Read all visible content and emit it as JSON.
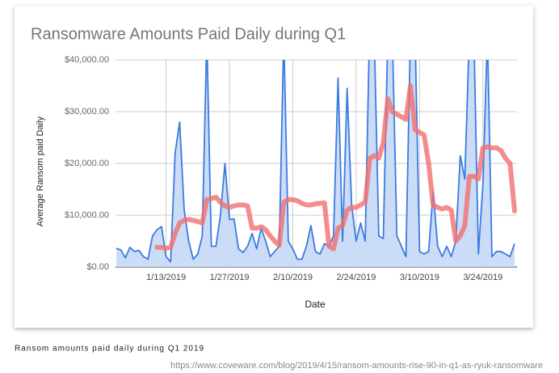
{
  "chart_data": {
    "type": "area_line",
    "title": "Ransomware Amounts Paid Daily during Q1",
    "xlabel": "Date",
    "ylabel": "Average Ransom paid Daily",
    "xlim": [
      "1/2/2019",
      "3/31/2019"
    ],
    "xticks": [
      "1/13/2019",
      "1/27/2019",
      "2/10/2019",
      "2/24/2019",
      "3/10/2019",
      "3/24/2019"
    ],
    "ylim": [
      0,
      40000
    ],
    "yticks": [
      {
        "value": 0,
        "label": "$0.00"
      },
      {
        "value": 10000,
        "label": "$10,000.00"
      },
      {
        "value": 20000,
        "label": "$20,000.00"
      },
      {
        "value": 30000,
        "label": "$30,000.00"
      },
      {
        "value": 40000,
        "label": "$40,000.00"
      }
    ],
    "grid": true,
    "start": "1/2/2019",
    "series": [
      {
        "color": "#3b7be0",
        "fill": "#c5d8f6",
        "values": [
          3600,
          3300,
          1800,
          3800,
          3000,
          3200,
          2000,
          1500,
          6000,
          7200,
          7800,
          2000,
          1000,
          22000,
          28000,
          11000,
          5000,
          1500,
          2500,
          6000,
          45000,
          4000,
          4000,
          10000,
          20000,
          9200,
          9300,
          3500,
          2800,
          4000,
          6500,
          3500,
          7500,
          5000,
          2000,
          3000,
          4000,
          45000,
          5000,
          3500,
          1500,
          1500,
          4000,
          8000,
          3000,
          2500,
          4500,
          4000,
          6000,
          36500,
          5000,
          34500,
          12000,
          5000,
          8500,
          5000,
          48000,
          45000,
          6000,
          5500,
          45000,
          45000,
          6000,
          4000,
          2000,
          45000,
          45000,
          3000,
          2500,
          3000,
          14500,
          4000,
          2000,
          4000,
          2000,
          5000,
          21500,
          17000,
          45000,
          45000,
          2500,
          16000,
          45000,
          2000,
          3000,
          3000,
          2500,
          2000,
          4500
        ]
      },
      {
        "color": "#f07070",
        "values": [
          null,
          null,
          null,
          null,
          null,
          null,
          null,
          null,
          null,
          3800,
          3800,
          3600,
          3800,
          6500,
          8500,
          9000,
          9200,
          9000,
          8800,
          8500,
          13000,
          13200,
          13500,
          12500,
          11800,
          11500,
          11800,
          12000,
          12000,
          11800,
          7500,
          7500,
          7800,
          7200,
          6000,
          5000,
          4200,
          12500,
          13000,
          13000,
          12800,
          12300,
          12000,
          12000,
          12200,
          12300,
          12400,
          4000,
          3500,
          7500,
          8000,
          11000,
          11500,
          11500,
          12000,
          12500,
          21000,
          21500,
          21000,
          24000,
          32500,
          30000,
          29500,
          29000,
          28500,
          35000,
          26500,
          26000,
          25500,
          20000,
          12000,
          11500,
          11200,
          11500,
          11000,
          5000,
          6000,
          8000,
          17500,
          17500,
          17000,
          23000,
          23200,
          23000,
          23000,
          22500,
          21000,
          20000,
          10800
        ]
      }
    ]
  },
  "caption": "Ransom amounts paid daily during Q1 2019",
  "source": "https://www.coveware.com/blog/2019/4/15/ransom-amounts-rise-90-in-q1-as-ryuk-ransomware"
}
